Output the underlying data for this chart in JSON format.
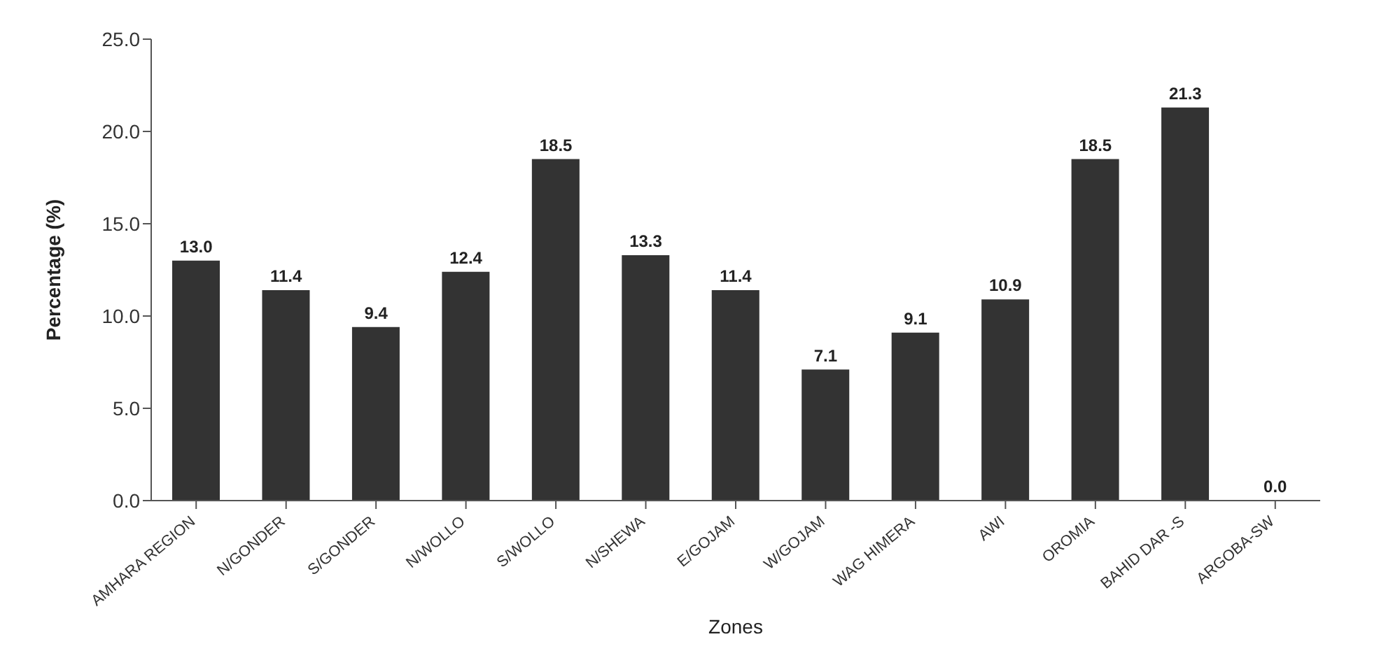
{
  "chart_data": {
    "type": "bar",
    "xlabel": "Zones",
    "ylabel": "Percentage (%)",
    "categories": [
      "AMHARA REGION",
      "N/GONDER",
      "S/GONDER",
      "N/WOLLO",
      "S/WOLLO",
      "N/SHEWA",
      "E/GOJAM",
      "W/GOJAM",
      "WAG HIMERA",
      "AWI",
      "OROMIA",
      "BAHID DAR -S",
      "ARGOBA-SW"
    ],
    "values": [
      13.0,
      11.4,
      9.4,
      12.4,
      18.5,
      13.3,
      11.4,
      7.1,
      9.1,
      10.9,
      18.5,
      21.3,
      0.0
    ],
    "color": "#333333",
    "ylim": [
      0,
      25
    ],
    "yticks": [
      {
        "value": 0,
        "label": "0.0"
      },
      {
        "value": 5,
        "label": "5.0"
      },
      {
        "value": 10,
        "label": "10.0"
      },
      {
        "value": 15,
        "label": "15.0"
      },
      {
        "value": 20,
        "label": "20.0"
      },
      {
        "value": 25,
        "label": "25.0"
      }
    ],
    "value_labels": [
      "13.0",
      "11.4",
      "9.4",
      "12.4",
      "18.5",
      "13.3",
      "11.4",
      "7.1",
      "9.1",
      "10.9",
      "18.5",
      "21.3",
      "0.0"
    ],
    "grid": false,
    "legend": false
  }
}
